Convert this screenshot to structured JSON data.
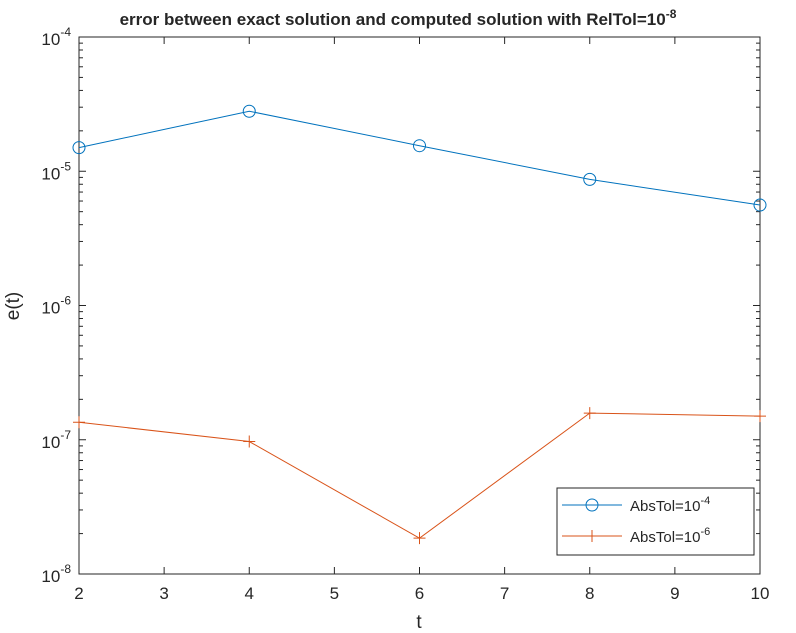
{
  "chart_data": {
    "type": "line",
    "title": {
      "prefix": "error between exact solution and computed solution with RelTol=10",
      "exponent": "-8"
    },
    "xlabel": "t",
    "ylabel": "e(t)",
    "x_scale": "linear",
    "y_scale": "log",
    "xlim": [
      2,
      10
    ],
    "ylim": [
      1e-08,
      0.0001
    ],
    "x_ticks": [
      2,
      3,
      4,
      5,
      6,
      7,
      8,
      9,
      10
    ],
    "x_tick_labels": [
      "2",
      "3",
      "4",
      "5",
      "6",
      "7",
      "8",
      "9",
      "10"
    ],
    "y_ticks": [
      {
        "value": 1e-08,
        "base": "10",
        "exp": "-8"
      },
      {
        "value": 1e-07,
        "base": "10",
        "exp": "-7"
      },
      {
        "value": 1e-06,
        "base": "10",
        "exp": "-6"
      },
      {
        "value": 1e-05,
        "base": "10",
        "exp": "-5"
      },
      {
        "value": 0.0001,
        "base": "10",
        "exp": "-4"
      }
    ],
    "grid": false,
    "legend_position": "bottom-right",
    "series": [
      {
        "name_prefix": "AbsTol=10",
        "name_exponent": "-4",
        "color": "#0072BD",
        "marker": "circle",
        "x": [
          2,
          4,
          6,
          8,
          10
        ],
        "y": [
          1.5e-05,
          2.8e-05,
          1.55e-05,
          8.7e-06,
          5.6e-06
        ]
      },
      {
        "name_prefix": "AbsTol=10",
        "name_exponent": "-6",
        "color": "#D95319",
        "marker": "plus",
        "x": [
          2,
          4,
          6,
          8,
          10
        ],
        "y": [
          1.35e-07,
          9.7e-08,
          1.85e-08,
          1.58e-07,
          1.5e-07
        ]
      }
    ]
  }
}
